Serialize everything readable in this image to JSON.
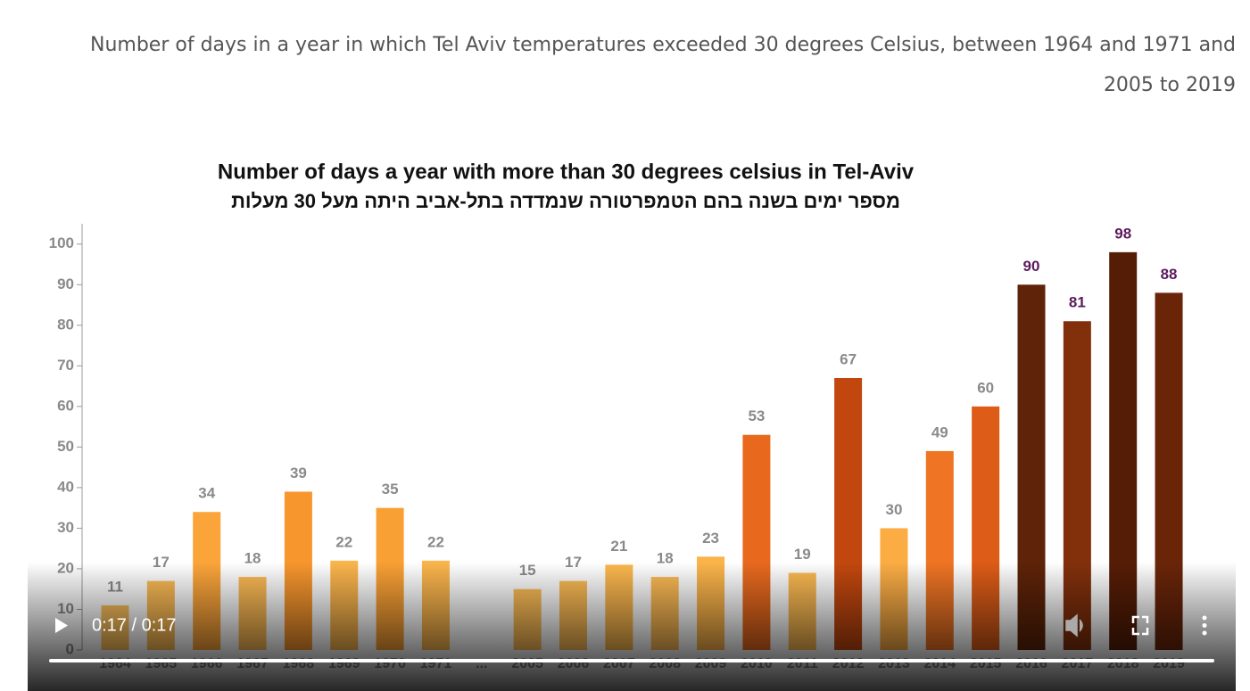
{
  "caption": "Number of days in a year in which Tel Aviv temperatures exceeded 30 degrees Celsius, between 1964 and 1971 and 2005 to 2019",
  "chart_data": {
    "type": "bar",
    "title": "Number of days a year with more than 30 degrees celsius in Tel-Aviv",
    "subtitle": "מספר ימים בשנה בהם הטמפרטורה שנמדדה בתל-אביב היתה מעל 30 מעלות",
    "categories": [
      "1964",
      "1965",
      "1966",
      "1967",
      "1968",
      "1969",
      "1970",
      "1971",
      "...",
      "2005",
      "2006",
      "2007",
      "2008",
      "2009",
      "2010",
      "2011",
      "2012",
      "2013",
      "2014",
      "2015",
      "2016",
      "2017",
      "2018",
      "2019"
    ],
    "values": [
      11,
      17,
      34,
      18,
      39,
      22,
      35,
      22,
      null,
      15,
      17,
      21,
      18,
      23,
      53,
      19,
      67,
      30,
      49,
      60,
      90,
      81,
      98,
      88
    ],
    "colors": [
      "#fcc05c",
      "#fcbb55",
      "#fba43a",
      "#fcba54",
      "#f7962d",
      "#fbb54c",
      "#f9a035",
      "#fbb54c",
      null,
      "#fcbc56",
      "#fcbb55",
      "#fbb74e",
      "#fcba54",
      "#fbb44a",
      "#e8691e",
      "#fbb951",
      "#c2470f",
      "#fbad44",
      "#ef7424",
      "#dd5c17",
      "#5e2308",
      "#82300c",
      "#561d06",
      "#6a2509"
    ],
    "label_colors": [
      "#8a8a8a",
      "#8a8a8a",
      "#8a8a8a",
      "#8a8a8a",
      "#8a8a8a",
      "#8a8a8a",
      "#8a8a8a",
      "#8a8a8a",
      null,
      "#8a8a8a",
      "#8a8a8a",
      "#8a8a8a",
      "#8a8a8a",
      "#8a8a8a",
      "#8a8a8a",
      "#8a8a8a",
      "#8a8a8a",
      "#8a8a8a",
      "#8a8a8a",
      "#8a8a8a",
      "#5b1a5c",
      "#5b1a5c",
      "#5b1a5c",
      "#5b1a5c"
    ],
    "ylim": [
      0,
      105
    ],
    "yticks": [
      0,
      10,
      20,
      30,
      40,
      50,
      60,
      70,
      80,
      90,
      100
    ]
  },
  "player": {
    "time": "0:17 / 0:17"
  }
}
